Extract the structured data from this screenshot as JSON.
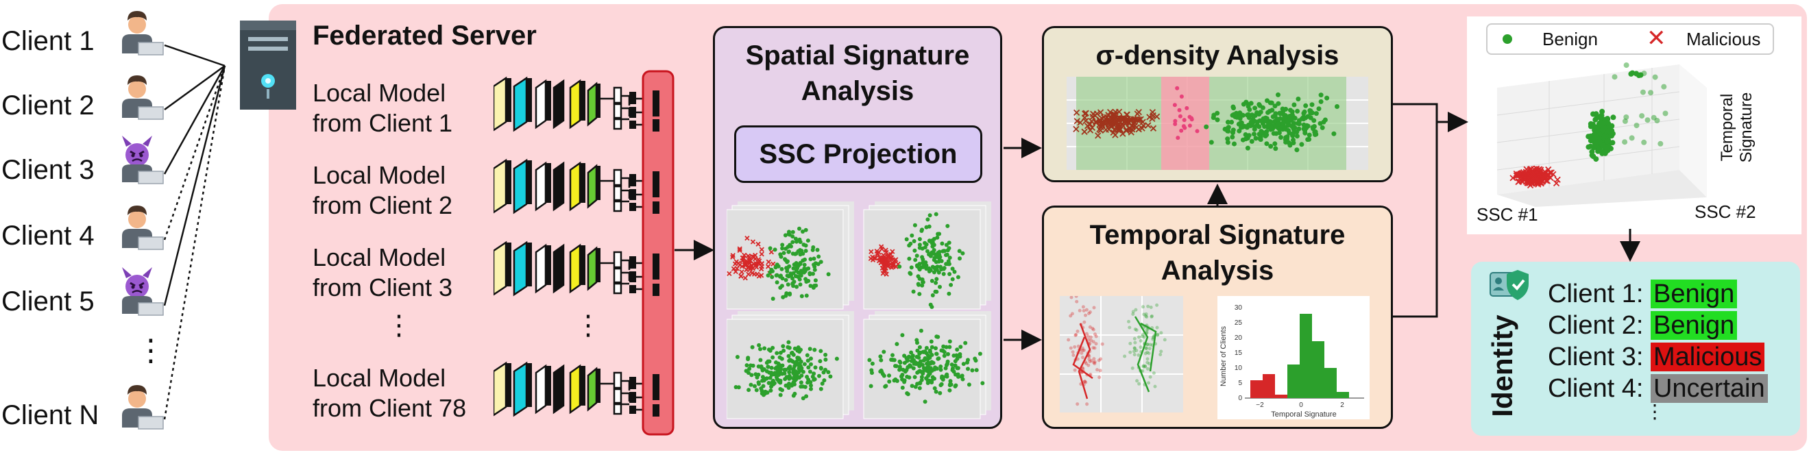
{
  "clients": {
    "items": [
      {
        "label": "Client 1",
        "icon": "person-icon"
      },
      {
        "label": "Client 2",
        "icon": "person-icon"
      },
      {
        "label": "Client 3",
        "icon": "devil-icon"
      },
      {
        "label": "Client 4",
        "icon": "person-icon"
      },
      {
        "label": "Client 5",
        "icon": "devil-icon"
      },
      {
        "label": "Client N",
        "icon": "person-icon"
      }
    ],
    "ellipsis": "⋮"
  },
  "server": {
    "title": "Federated Server",
    "models": [
      {
        "line1": "Local Model",
        "line2": "from Client 1"
      },
      {
        "line1": "Local Model",
        "line2": "from Client 2"
      },
      {
        "line1": "Local Model",
        "line2": "from Client 3"
      },
      {
        "line1": "Local Model",
        "line2": "from Client 78"
      }
    ],
    "ellipsis": "⋮"
  },
  "spatial": {
    "title_line1": "Spatial Signature",
    "title_line2": "Analysis",
    "projection_label": "SSC Projection"
  },
  "sigma": {
    "title": "σ-density Analysis"
  },
  "temporal": {
    "title_line1": "Temporal Signature",
    "title_line2": "Analysis",
    "histogram": {
      "ylabel": "Number of Clients",
      "xlabel": "Temporal Signature",
      "yticks": [
        "0",
        "5",
        "10",
        "15",
        "20",
        "25",
        "30"
      ],
      "xticks": [
        "−2",
        "0",
        "2"
      ]
    }
  },
  "scatter3d": {
    "legend": {
      "benign": "Benign",
      "malicious": "Malicious"
    },
    "axis_temporal_line1": "Temporal",
    "axis_temporal_line2": "Signature",
    "axis_ssc1": "SSC #1",
    "axis_ssc2": "SSC #2"
  },
  "identity": {
    "title": "Identity",
    "rows": [
      {
        "client": "Client 1:",
        "status": "Benign",
        "color": "#22dd22"
      },
      {
        "client": "Client 2:",
        "status": "Benign",
        "color": "#22dd22"
      },
      {
        "client": "Client 3:",
        "status": "Malicious",
        "color": "#dd1111"
      },
      {
        "client": "Client 4:",
        "status": "Uncertain",
        "color": "#8a8a8a"
      }
    ],
    "ellipsis": "⋮"
  },
  "colors": {
    "server_bg": "#fdd7da",
    "spatial_bg": "#e7d2e9",
    "sigma_bg": "#ece6d0",
    "temporal_bg": "#fbe3cf",
    "identity_bg": "#c8eeec",
    "benign": "#2ca02c",
    "malicious": "#d62728"
  }
}
